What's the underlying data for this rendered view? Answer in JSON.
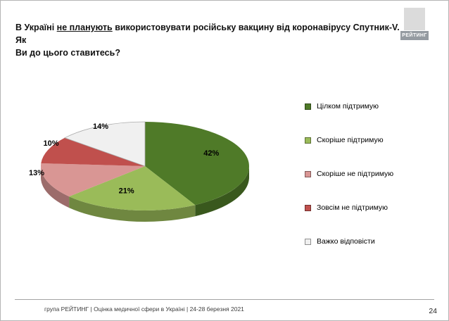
{
  "title": {
    "prefix": "В Україні ",
    "underlined": "не планують",
    "rest": " використовувати російську вакцину від коронавірусу Спутник-V. Як",
    "line2": "Ви до цього ставитесь?"
  },
  "logo": {
    "text": "РЕЙТИНГ"
  },
  "footer": {
    "text": "група РЕЙТИНГ  |  Оцінка медичної сфери в Україні  | 24-28 березня 2021"
  },
  "page": {
    "number": "24"
  },
  "chart_data": {
    "type": "pie",
    "style": "3d",
    "title": "",
    "legend_position": "right",
    "categories": [
      "Цілком підтримую",
      "Скоріше підтримую",
      "Скоріше не підтримую",
      "Зовсім не підтримую",
      "Важко відповісти"
    ],
    "values": [
      42,
      21,
      13,
      10,
      14
    ],
    "labels": [
      "42%",
      "21%",
      "13%",
      "10%",
      "14%"
    ],
    "colors": [
      "#4F7A28",
      "#9ABB59",
      "#D99694",
      "#C0504D",
      "#F0F0F0"
    ]
  }
}
